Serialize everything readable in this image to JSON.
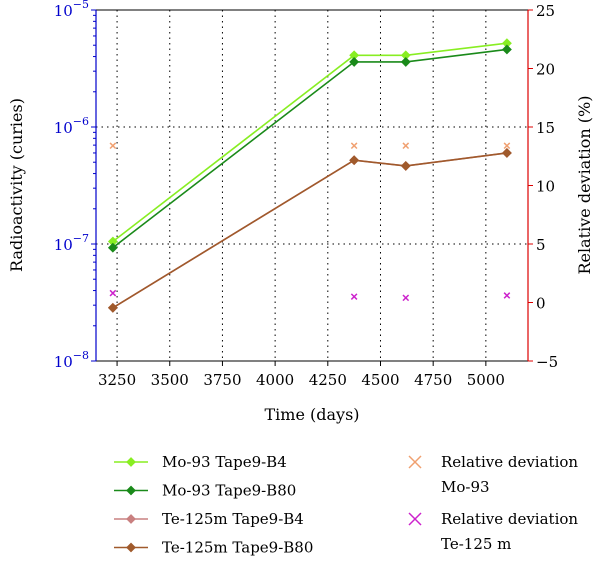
{
  "chart_data": {
    "type": "line",
    "xlabel": "Time (days)",
    "ylabel": "Radioactivity (curies)",
    "y2label": "Relative deviation (%)",
    "y_scale": "log",
    "xlim": [
      3150,
      5200
    ],
    "ylim": [
      1e-08,
      1e-05
    ],
    "y2lim": [
      -5,
      25
    ],
    "x_ticks": [
      "3250",
      "3500",
      "3750",
      "4000",
      "4250",
      "4500",
      "4750",
      "5000"
    ],
    "y_ticks": [
      {
        "base": "10",
        "exp": "−8"
      },
      {
        "base": "10",
        "exp": "−7"
      },
      {
        "base": "10",
        "exp": "−6"
      },
      {
        "base": "10",
        "exp": "−5"
      }
    ],
    "y2_ticks": [
      "−5",
      "0",
      "5",
      "10",
      "15",
      "20",
      "25"
    ],
    "grid": "dotted",
    "colors": {
      "left_axis": "#0000cc",
      "right_axis": "#dd0000"
    },
    "series": [
      {
        "name": "Mo-93 Tape9-B4",
        "axis": "left",
        "marker": "diamond",
        "color": "#88ee22",
        "x": [
          3230,
          4375,
          4620,
          5100
        ],
        "values": [
          1.05e-07,
          4.1e-06,
          4.1e-06,
          5.2e-06
        ]
      },
      {
        "name": "Mo-93 Tape9-B80",
        "axis": "left",
        "marker": "diamond",
        "color": "#1a8a1a",
        "x": [
          3230,
          4375,
          4620,
          5100
        ],
        "values": [
          9.3e-08,
          3.6e-06,
          3.6e-06,
          4.6e-06
        ]
      },
      {
        "name": "Te-125m Tape9-B4",
        "axis": "left",
        "marker": "diamond",
        "color": "#c98080",
        "x": [
          3230,
          4375,
          4620,
          5100
        ],
        "values": [
          2.85e-08,
          5.2e-07,
          4.65e-07,
          6e-07
        ]
      },
      {
        "name": "Te-125m Tape9-B80",
        "axis": "left",
        "marker": "diamond",
        "color": "#a05a2c",
        "x": [
          3230,
          4375,
          4620,
          5100
        ],
        "values": [
          2.85e-08,
          5.2e-07,
          4.65e-07,
          6e-07
        ]
      },
      {
        "name": "Relative deviation Mo-93",
        "axis": "right",
        "marker": "x",
        "color": "#f0a070",
        "x": [
          3230,
          4375,
          4620,
          5100
        ],
        "values": [
          13.4,
          13.4,
          13.4,
          13.4
        ]
      },
      {
        "name": "Relative deviation Te-125 m",
        "axis": "right",
        "marker": "x",
        "color": "#cc22cc",
        "x": [
          3230,
          4375,
          4620,
          5100
        ],
        "values": [
          0.8,
          0.5,
          0.4,
          0.6
        ]
      }
    ],
    "legend": {
      "placement": "bottom",
      "entries": [
        {
          "lines": [
            "Mo-93 Tape9-B4"
          ],
          "marker": "diamond",
          "color": "#88ee22"
        },
        {
          "lines": [
            "Mo-93 Tape9-B80"
          ],
          "marker": "diamond",
          "color": "#1a8a1a"
        },
        {
          "lines": [
            "Te-125m Tape9-B4"
          ],
          "marker": "diamond",
          "color": "#c98080"
        },
        {
          "lines": [
            "Te-125m Tape9-B80"
          ],
          "marker": "diamond",
          "color": "#a05a2c"
        },
        {
          "lines": [
            "Relative deviation",
            "Mo-93"
          ],
          "marker": "x",
          "color": "#f0a070"
        },
        {
          "lines": [
            "Relative deviation",
            "Te-125 m"
          ],
          "marker": "x",
          "color": "#cc22cc"
        }
      ]
    }
  }
}
